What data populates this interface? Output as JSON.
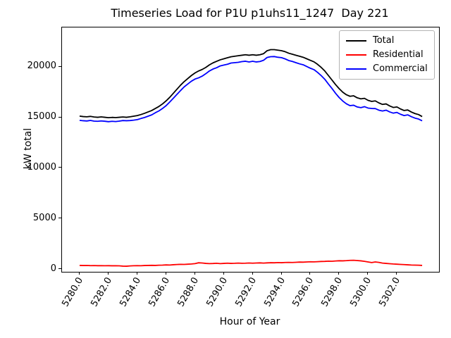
{
  "chart_data": {
    "type": "line",
    "title": "Timeseries Load for P1U p1uhs11_1247  Day 221",
    "xlabel": "Hour of Year",
    "ylabel": "kW total",
    "grid": false,
    "legend_position": "upper right",
    "xlim": [
      5278.78,
      5304.92
    ],
    "ylim": [
      -210,
      23890
    ],
    "xticks": [
      5280,
      5282,
      5284,
      5286,
      5288,
      5290,
      5292,
      5294,
      5296,
      5298,
      5300,
      5302
    ],
    "xtick_labels": [
      "5280.0",
      "5282.0",
      "5284.0",
      "5286.0",
      "5288.0",
      "5290.0",
      "5292.0",
      "5294.0",
      "5296.0",
      "5298.0",
      "5300.0",
      "5302.0"
    ],
    "yticks": [
      0,
      5000,
      10000,
      15000,
      20000
    ],
    "ytick_labels": [
      "0",
      "5000",
      "10000",
      "15000",
      "20000"
    ],
    "x": {
      "start": 5280.0,
      "step": 0.25,
      "count": 96
    },
    "series": [
      {
        "name": "Total",
        "color": "#000000",
        "values": [
          15150,
          15100,
          15080,
          15120,
          15060,
          15030,
          15070,
          15030,
          14990,
          15020,
          15000,
          15030,
          15060,
          15030,
          15080,
          15140,
          15200,
          15300,
          15420,
          15560,
          15700,
          15900,
          16100,
          16350,
          16650,
          17000,
          17400,
          17800,
          18200,
          18550,
          18850,
          19150,
          19400,
          19600,
          19750,
          19950,
          20200,
          20400,
          20550,
          20700,
          20800,
          20900,
          21000,
          21050,
          21100,
          21150,
          21200,
          21150,
          21200,
          21150,
          21200,
          21300,
          21600,
          21700,
          21700,
          21650,
          21600,
          21500,
          21350,
          21250,
          21150,
          21050,
          20950,
          20800,
          20650,
          20500,
          20250,
          19950,
          19600,
          19150,
          18700,
          18250,
          17850,
          17500,
          17250,
          17100,
          17150,
          16950,
          16850,
          16900,
          16700,
          16600,
          16650,
          16450,
          16300,
          16350,
          16150,
          16000,
          16050,
          15850,
          15700,
          15750,
          15550,
          15400,
          15300,
          15100
        ]
      },
      {
        "name": "Residential",
        "color": "#ff0000",
        "values": [
          420,
          410,
          415,
          400,
          405,
          395,
          400,
          390,
          395,
          385,
          390,
          380,
          350,
          340,
          370,
          390,
          400,
          390,
          410,
          420,
          430,
          420,
          440,
          450,
          470,
          460,
          490,
          510,
          530,
          520,
          540,
          560,
          600,
          680,
          660,
          620,
          600,
          610,
          630,
          600,
          620,
          640,
          620,
          630,
          650,
          630,
          640,
          660,
          640,
          660,
          670,
          650,
          670,
          690,
          680,
          700,
          690,
          710,
          720,
          710,
          730,
          750,
          740,
          760,
          780,
          770,
          790,
          810,
          820,
          840,
          830,
          860,
          880,
          870,
          890,
          920,
          930,
          900,
          870,
          820,
          760,
          700,
          760,
          720,
          650,
          620,
          590,
          560,
          540,
          520,
          500,
          480,
          460,
          450,
          440,
          420
        ]
      },
      {
        "name": "Commercial",
        "color": "#0000ff",
        "values": [
          14730,
          14690,
          14665,
          14720,
          14655,
          14635,
          14670,
          14640,
          14595,
          14635,
          14610,
          14650,
          14710,
          14690,
          14710,
          14750,
          14800,
          14910,
          15010,
          15140,
          15270,
          15480,
          15660,
          15900,
          16180,
          16540,
          16910,
          17290,
          17670,
          18030,
          18310,
          18590,
          18800,
          18920,
          19090,
          19330,
          19600,
          19790,
          19920,
          20100,
          20180,
          20260,
          20380,
          20420,
          20450,
          20520,
          20560,
          20490,
          20560,
          20490,
          20530,
          20650,
          20930,
          21010,
          21020,
          20950,
          20910,
          20790,
          20630,
          20540,
          20420,
          20300,
          20210,
          20040,
          19870,
          19730,
          19460,
          19140,
          18780,
          18310,
          17870,
          17390,
          16970,
          16630,
          16360,
          16180,
          16220,
          16050,
          15980,
          16080,
          15940,
          15900,
          15890,
          15730,
          15650,
          15730,
          15560,
          15440,
          15510,
          15330,
          15200,
          15270,
          15090,
          14950,
          14860,
          14680
        ]
      }
    ]
  }
}
